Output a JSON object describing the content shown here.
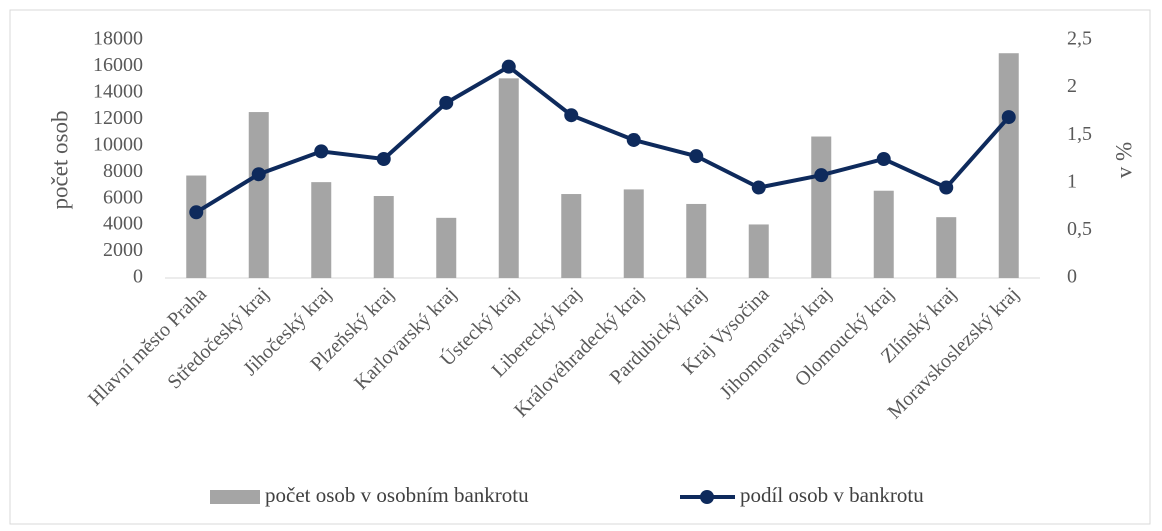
{
  "chart_data": {
    "type": "bar-line",
    "categories": [
      "Hlavní město Praha",
      "Středočeský kraj",
      "Jihočeský kraj",
      "Plzeňský kraj",
      "Karlovarský kraj",
      "Ústecký kraj",
      "Liberecký kraj",
      "Královéhradecký kraj",
      "Pardubický kraj",
      "Kraj Vysočina",
      "Jihomoravský kraj",
      "Olomoucký kraj",
      "Zlínský kraj",
      "Moravskoslezský kraj"
    ],
    "series": [
      {
        "name": "počet osob v osobním bankrotu",
        "color": "#a5a5a5",
        "kind": "bar",
        "axis": "y",
        "values": [
          7750,
          12550,
          7250,
          6200,
          4550,
          15100,
          6350,
          6700,
          5600,
          4050,
          10700,
          6600,
          4600,
          17000
        ]
      },
      {
        "name": "podíl osob v bankrotu",
        "color": "#0e2a5c",
        "kind": "line",
        "axis": "y2",
        "values": [
          0.69,
          1.09,
          1.33,
          1.25,
          1.84,
          2.22,
          1.71,
          1.45,
          1.28,
          0.95,
          1.08,
          1.25,
          0.95,
          1.69
        ]
      }
    ],
    "ylabel": "počet osob",
    "y2label": "v %",
    "ylim": [
      0,
      18000
    ],
    "yticks": [
      0,
      2000,
      4000,
      6000,
      8000,
      10000,
      12000,
      14000,
      16000,
      18000
    ],
    "y2lim": [
      0,
      2.5
    ],
    "y2ticks": [
      0,
      {
        "value": 0.5,
        "label": "0,5"
      },
      1,
      {
        "value": 1.5,
        "label": "1,5"
      },
      2,
      {
        "value": 2.5,
        "label": "2,5"
      }
    ],
    "legend": "bottom"
  }
}
